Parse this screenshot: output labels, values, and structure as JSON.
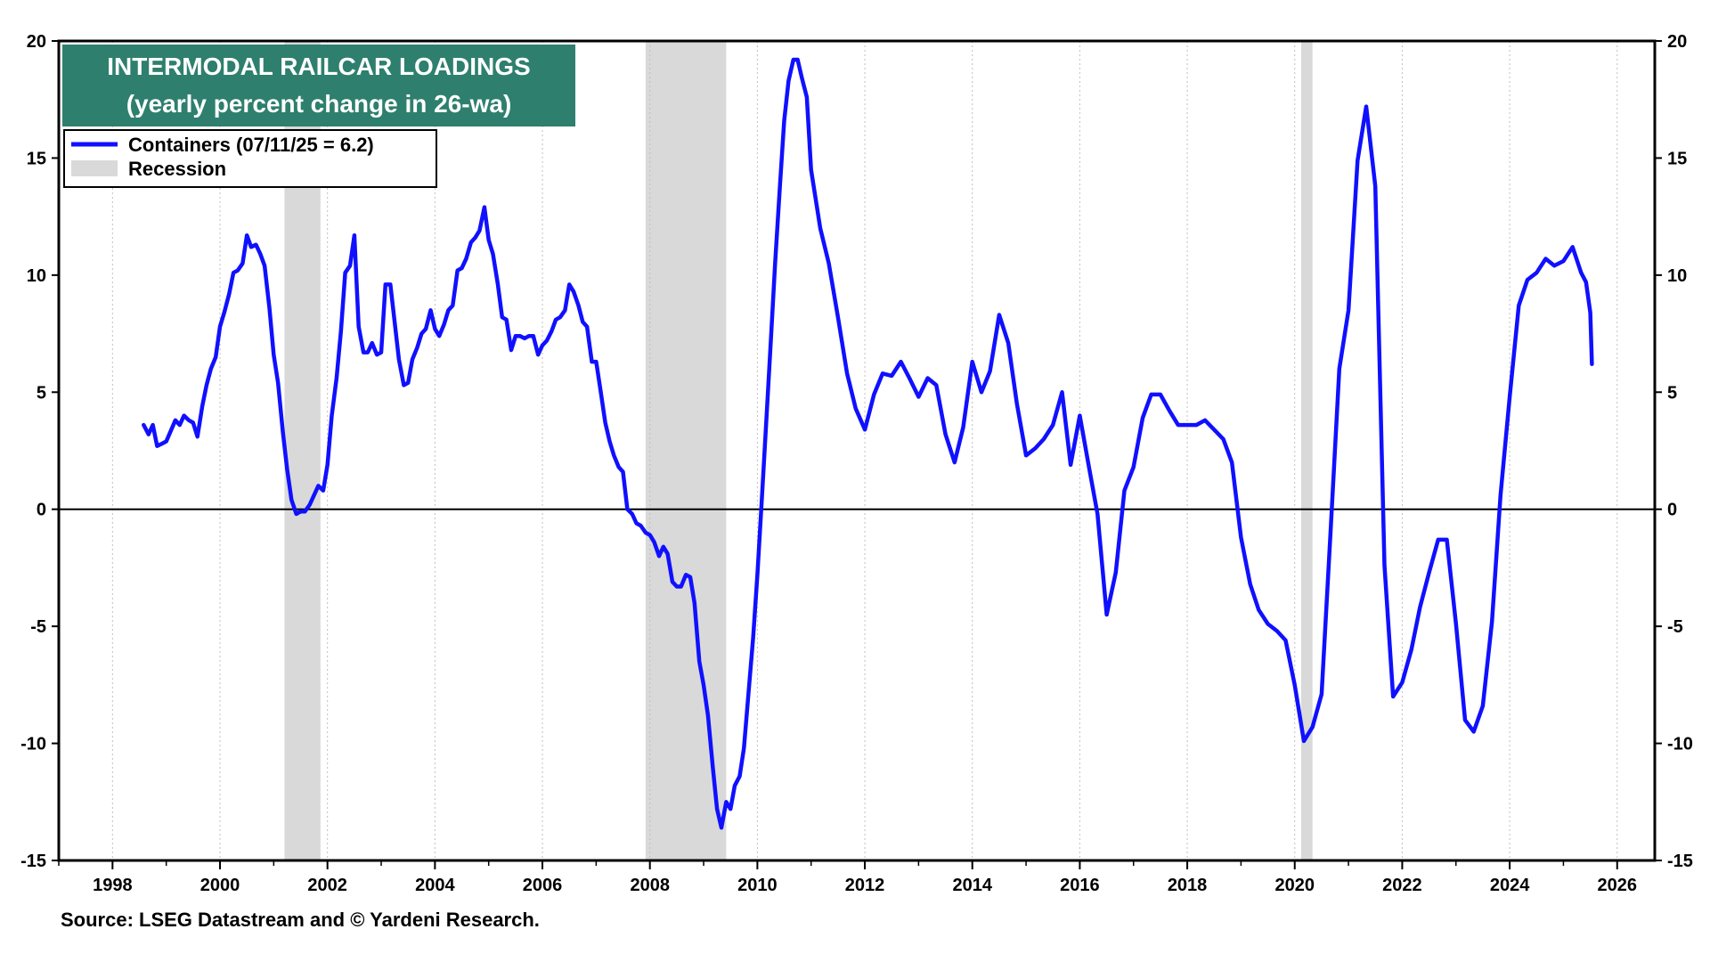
{
  "chart_data": {
    "type": "line",
    "title": "INTERMODAL RAILCAR LOADINGS",
    "subtitle": "(yearly percent change in 26-wa)",
    "source": "Source: LSEG Datastream and © Yardeni Research.",
    "xlim": [
      1997.0,
      2026.7
    ],
    "ylim": [
      -15,
      20
    ],
    "x_ticks": [
      "1998",
      "2000",
      "2002",
      "2004",
      "2006",
      "2008",
      "2010",
      "2012",
      "2014",
      "2016",
      "2018",
      "2020",
      "2022",
      "2024",
      "2026"
    ],
    "y_ticks": [
      "20",
      "15",
      "10",
      "5",
      "0",
      "-5",
      "-10",
      "-15"
    ],
    "grid": "vertical-dotted",
    "legend_position": "top-left",
    "colors": {
      "series": "#1010ff",
      "recession": "#d9d9d9",
      "title_bg": "#2e7f6e"
    },
    "recessions": [
      {
        "start": 2001.2,
        "end": 2001.87
      },
      {
        "start": 2007.92,
        "end": 2009.42
      },
      {
        "start": 2020.12,
        "end": 2020.33
      }
    ],
    "legend": [
      {
        "label": "Containers (07/11/25 = 6.2)",
        "kind": "line"
      },
      {
        "label": "Recession",
        "kind": "area"
      }
    ],
    "series": [
      {
        "name": "Containers (07/11/25 = 6.2)",
        "x": [
          1998.58,
          1998.67,
          1998.75,
          1998.83,
          1998.92,
          1999.0,
          1999.17,
          1999.25,
          1999.33,
          1999.42,
          1999.5,
          1999.58,
          1999.67,
          1999.75,
          1999.83,
          1999.92,
          2000.0,
          2000.08,
          2000.17,
          2000.25,
          2000.33,
          2000.42,
          2000.5,
          2000.58,
          2000.67,
          2000.75,
          2000.83,
          2000.92,
          2001.0,
          2001.08,
          2001.17,
          2001.25,
          2001.33,
          2001.42,
          2001.5,
          2001.58,
          2001.67,
          2001.75,
          2001.83,
          2001.92,
          2002.0,
          2002.08,
          2002.17,
          2002.25,
          2002.33,
          2002.42,
          2002.5,
          2002.58,
          2002.67,
          2002.75,
          2002.83,
          2002.92,
          2003.0,
          2003.08,
          2003.17,
          2003.25,
          2003.33,
          2003.42,
          2003.5,
          2003.58,
          2003.67,
          2003.75,
          2003.83,
          2003.92,
          2004.0,
          2004.08,
          2004.17,
          2004.25,
          2004.33,
          2004.42,
          2004.5,
          2004.58,
          2004.67,
          2004.75,
          2004.83,
          2004.92,
          2005.0,
          2005.08,
          2005.17,
          2005.25,
          2005.33,
          2005.42,
          2005.5,
          2005.58,
          2005.67,
          2005.75,
          2005.83,
          2005.92,
          2006.0,
          2006.08,
          2006.17,
          2006.25,
          2006.33,
          2006.42,
          2006.5,
          2006.58,
          2006.67,
          2006.75,
          2006.83,
          2006.92,
          2007.0,
          2007.08,
          2007.17,
          2007.25,
          2007.33,
          2007.42,
          2007.5,
          2007.58,
          2007.67,
          2007.75,
          2007.83,
          2007.92,
          2008.0,
          2008.08,
          2008.17,
          2008.25,
          2008.33,
          2008.42,
          2008.5,
          2008.58,
          2008.67,
          2008.75,
          2008.83,
          2008.92,
          2009.0,
          2009.08,
          2009.17,
          2009.25,
          2009.33,
          2009.42,
          2009.5,
          2009.58,
          2009.67,
          2009.75,
          2009.83,
          2009.92,
          2010.0,
          2010.08,
          2010.17,
          2010.25,
          2010.33,
          2010.42,
          2010.5,
          2010.58,
          2010.67,
          2010.75,
          2010.83,
          2010.92,
          2011.0,
          2011.17,
          2011.33,
          2011.5,
          2011.67,
          2011.83,
          2012.0,
          2012.17,
          2012.33,
          2012.5,
          2012.67,
          2012.83,
          2013.0,
          2013.17,
          2013.33,
          2013.5,
          2013.67,
          2013.83,
          2014.0,
          2014.17,
          2014.33,
          2014.5,
          2014.67,
          2014.83,
          2015.0,
          2015.17,
          2015.33,
          2015.5,
          2015.67,
          2015.83,
          2016.0,
          2016.17,
          2016.33,
          2016.5,
          2016.67,
          2016.83,
          2017.0,
          2017.17,
          2017.33,
          2017.5,
          2017.67,
          2017.83,
          2018.0,
          2018.17,
          2018.33,
          2018.5,
          2018.67,
          2018.83,
          2019.0,
          2019.17,
          2019.33,
          2019.5,
          2019.67,
          2019.83,
          2020.0,
          2020.17,
          2020.33,
          2020.5,
          2020.67,
          2020.83,
          2021.0,
          2021.17,
          2021.33,
          2021.5,
          2021.67,
          2021.83,
          2022.0,
          2022.17,
          2022.33,
          2022.5,
          2022.67,
          2022.83,
          2023.0,
          2023.17,
          2023.33,
          2023.5,
          2023.67,
          2023.83,
          2024.0,
          2024.17,
          2024.33,
          2024.5,
          2024.67,
          2024.83,
          2025.0,
          2025.17,
          2025.33,
          2025.42,
          2025.5,
          2025.53
        ],
        "y": [
          3.6,
          3.2,
          3.6,
          2.7,
          2.8,
          2.9,
          3.8,
          3.6,
          4.0,
          3.8,
          3.7,
          3.1,
          4.4,
          5.3,
          6.0,
          6.5,
          7.8,
          8.4,
          9.2,
          10.1,
          10.2,
          10.5,
          11.7,
          11.2,
          11.3,
          10.9,
          10.4,
          8.6,
          6.6,
          5.4,
          3.3,
          1.7,
          0.4,
          -0.2,
          -0.1,
          -0.1,
          0.2,
          0.6,
          1.0,
          0.8,
          1.9,
          4.0,
          5.6,
          7.6,
          10.1,
          10.4,
          11.7,
          7.8,
          6.7,
          6.7,
          7.1,
          6.6,
          6.7,
          9.6,
          9.6,
          8.0,
          6.4,
          5.3,
          5.4,
          6.4,
          6.9,
          7.5,
          7.7,
          8.5,
          7.7,
          7.4,
          7.9,
          8.5,
          8.7,
          10.2,
          10.3,
          10.7,
          11.4,
          11.6,
          11.9,
          12.9,
          11.5,
          10.9,
          9.6,
          8.2,
          8.1,
          6.8,
          7.4,
          7.4,
          7.3,
          7.4,
          7.4,
          6.6,
          7.0,
          7.2,
          7.6,
          8.1,
          8.2,
          8.5,
          9.6,
          9.3,
          8.7,
          8.0,
          7.8,
          6.3,
          6.3,
          5.1,
          3.7,
          2.9,
          2.3,
          1.8,
          1.6,
          0.0,
          -0.2,
          -0.6,
          -0.7,
          -1.0,
          -1.1,
          -1.4,
          -2.0,
          -1.6,
          -1.9,
          -3.1,
          -3.3,
          -3.3,
          -2.8,
          -2.9,
          -4.0,
          -6.5,
          -7.5,
          -8.8,
          -11.0,
          -12.8,
          -13.6,
          -12.5,
          -12.8,
          -11.8,
          -11.4,
          -10.2,
          -8.0,
          -5.5,
          -2.8,
          0.3,
          3.9,
          7.2,
          10.5,
          13.8,
          16.6,
          18.3,
          19.2,
          19.2,
          18.4,
          17.6,
          14.5,
          12.0,
          10.5,
          8.2,
          5.8,
          4.3,
          3.4,
          4.9,
          5.8,
          5.7,
          6.3,
          5.6,
          4.8,
          5.6,
          5.3,
          3.2,
          2.0,
          3.5,
          6.3,
          5.0,
          5.9,
          8.3,
          7.1,
          4.5,
          2.3,
          2.6,
          3.0,
          3.6,
          5.0,
          1.9,
          4.0,
          1.8,
          -0.2,
          -4.5,
          -2.7,
          0.8,
          1.8,
          3.9,
          4.9,
          4.9,
          4.2,
          3.6,
          3.6,
          3.6,
          3.8,
          3.4,
          3.0,
          2.0,
          -1.2,
          -3.2,
          -4.3,
          -4.9,
          -5.2,
          -5.6,
          -7.5,
          -9.9,
          -9.3,
          -7.9,
          -0.8,
          6.0,
          8.5,
          14.9,
          17.2,
          13.8,
          -2.4,
          -8.0,
          -7.4,
          -6.0,
          -4.2,
          -2.7,
          -1.3,
          -1.3,
          -4.9,
          -9.0,
          -9.5,
          -8.4,
          -4.8,
          0.6,
          4.8,
          8.7,
          9.8,
          10.1,
          10.7,
          10.4,
          10.6,
          11.2,
          10.1,
          9.7,
          8.4,
          6.2
        ]
      }
    ]
  }
}
